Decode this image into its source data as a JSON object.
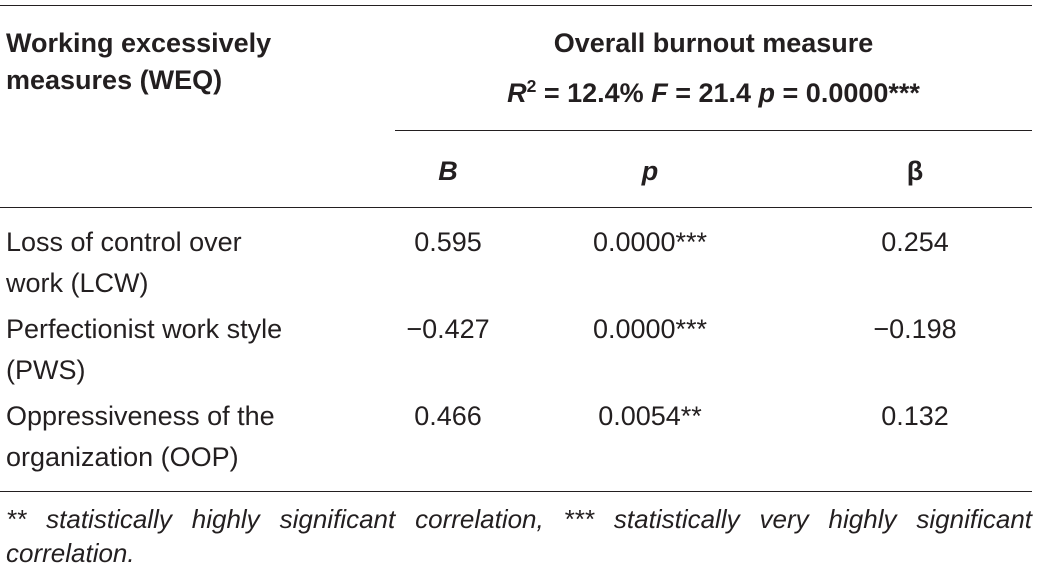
{
  "table": {
    "header_left_line1": "Working excessively",
    "header_left_line2": "measures (WEQ)",
    "header_group": "Overall burnout measure",
    "stats": {
      "r_label": "R",
      "r_sup": "2",
      "r_value": " = 12.4% ",
      "f_label": "F",
      "f_value": " = 21.4 ",
      "p_label": "p",
      "p_value": " = 0.0000***"
    },
    "columns": {
      "B": "B",
      "p": "p",
      "beta": "β"
    },
    "rows": [
      {
        "label_line1": "Loss of control over",
        "label_line2": "work (LCW)",
        "B": "0.595",
        "p": "0.0000***",
        "beta": "0.254"
      },
      {
        "label_line1": "Perfectionist work style",
        "label_line2": "(PWS)",
        "B": "−0.427",
        "p": "0.0000***",
        "beta": "−0.198"
      },
      {
        "label_line1": "Oppressiveness of the",
        "label_line2": "organization (OOP)",
        "B": "0.466",
        "p": "0.0054**",
        "beta": "0.132"
      }
    ],
    "footnote": "** statistically highly significant correlation, *** statistically very highly significant correlation."
  }
}
